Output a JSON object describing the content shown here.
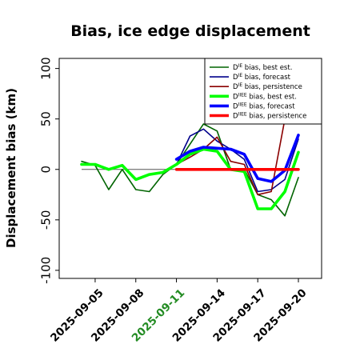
{
  "chart_data": {
    "type": "line",
    "title": "Bias, ice edge displacement",
    "xlabel": "",
    "ylabel": "Displacement bias (km)",
    "ylim": [
      -108,
      110
    ],
    "yticks": [
      100,
      50,
      0,
      -50,
      -100
    ],
    "x_dates": [
      "2025-09-04",
      "2025-09-05",
      "2025-09-06",
      "2025-09-07",
      "2025-09-08",
      "2025-09-09",
      "2025-09-10",
      "2025-09-11",
      "2025-09-12",
      "2025-09-13",
      "2025-09-14",
      "2025-09-15",
      "2025-09-16",
      "2025-09-17",
      "2025-09-18",
      "2025-09-19",
      "2025-09-20"
    ],
    "xticks": [
      {
        "label": "2025-09-05",
        "date": "2025-09-05",
        "color": "#000000"
      },
      {
        "label": "2025-09-08",
        "date": "2025-09-08",
        "color": "#000000"
      },
      {
        "label": "2025-09-11",
        "date": "2025-09-11",
        "color": "#228b22"
      },
      {
        "label": "2025-09-14",
        "date": "2025-09-14",
        "color": "#000000"
      },
      {
        "label": "2025-09-17",
        "date": "2025-09-17",
        "color": "#000000"
      },
      {
        "label": "2025-09-20",
        "date": "2025-09-20",
        "color": "#000000"
      }
    ],
    "legend_position": "top-right",
    "series": [
      {
        "name_prefix": "D",
        "name_sup": "IE",
        "name_suffix": " bias, best est.",
        "color": "#006400",
        "width": 1.6,
        "x": [
          "2025-09-04",
          "2025-09-05",
          "2025-09-06",
          "2025-09-07",
          "2025-09-08",
          "2025-09-09",
          "2025-09-10",
          "2025-09-11",
          "2025-09-12",
          "2025-09-13",
          "2025-09-14",
          "2025-09-15",
          "2025-09-16",
          "2025-09-17",
          "2025-09-18",
          "2025-09-19",
          "2025-09-20"
        ],
        "y": [
          8,
          4,
          -20,
          0,
          -20,
          -22,
          -5,
          5,
          25,
          45,
          38,
          0,
          0,
          -25,
          -30,
          -46,
          -8
        ]
      },
      {
        "name_prefix": "D",
        "name_sup": "IE",
        "name_suffix": " bias, forecast",
        "color": "#00008b",
        "width": 1.6,
        "x": [
          "2025-09-11",
          "2025-09-12",
          "2025-09-13",
          "2025-09-14",
          "2025-09-15",
          "2025-09-16",
          "2025-09-17",
          "2025-09-18",
          "2025-09-19",
          "2025-09-20"
        ],
        "y": [
          5,
          33,
          40,
          28,
          20,
          10,
          -22,
          -20,
          -10,
          30
        ]
      },
      {
        "name_prefix": "D",
        "name_sup": "IE",
        "name_suffix": " bias, persistence",
        "color": "#8b0000",
        "width": 1.6,
        "x": [
          "2025-09-11",
          "2025-09-12",
          "2025-09-13",
          "2025-09-14",
          "2025-09-15",
          "2025-09-16",
          "2025-09-17",
          "2025-09-18",
          "2025-09-19"
        ],
        "y": [
          5,
          12,
          20,
          32,
          8,
          5,
          -25,
          -22,
          50
        ]
      },
      {
        "name_prefix": "D",
        "name_sup": "IIEE",
        "name_suffix": " bias, best est.",
        "color": "#00ff00",
        "width": 3.6,
        "x": [
          "2025-09-04",
          "2025-09-05",
          "2025-09-06",
          "2025-09-07",
          "2025-09-08",
          "2025-09-09",
          "2025-09-10",
          "2025-09-11",
          "2025-09-12",
          "2025-09-13",
          "2025-09-14",
          "2025-09-15",
          "2025-09-16",
          "2025-09-17",
          "2025-09-18",
          "2025-09-19",
          "2025-09-20"
        ],
        "y": [
          5,
          5,
          0,
          4,
          -10,
          -5,
          -3,
          5,
          15,
          20,
          18,
          0,
          -2,
          -39,
          -39,
          -22,
          17
        ]
      },
      {
        "name_prefix": "D",
        "name_sup": "IIEE",
        "name_suffix": " bias, forecast",
        "color": "#0000ff",
        "width": 3.6,
        "x": [
          "2025-09-11",
          "2025-09-12",
          "2025-09-13",
          "2025-09-14",
          "2025-09-15",
          "2025-09-16",
          "2025-09-17",
          "2025-09-18",
          "2025-09-19",
          "2025-09-20"
        ],
        "y": [
          10,
          18,
          22,
          21,
          20,
          15,
          -9,
          -12,
          -1,
          34
        ]
      },
      {
        "name_prefix": "D",
        "name_sup": "IIEE",
        "name_suffix": " bias, persistence",
        "color": "#ff0000",
        "width": 3.6,
        "x": [
          "2025-09-11",
          "2025-09-12",
          "2025-09-13",
          "2025-09-14",
          "2025-09-15",
          "2025-09-16",
          "2025-09-17",
          "2025-09-18",
          "2025-09-19",
          "2025-09-20"
        ],
        "y": [
          0,
          0,
          0,
          0,
          0,
          0,
          0,
          0,
          0,
          0
        ]
      }
    ],
    "zero_line": {
      "y": 0,
      "x_from": "2025-09-04",
      "x_to": "2025-09-20",
      "color": "#555555"
    }
  }
}
